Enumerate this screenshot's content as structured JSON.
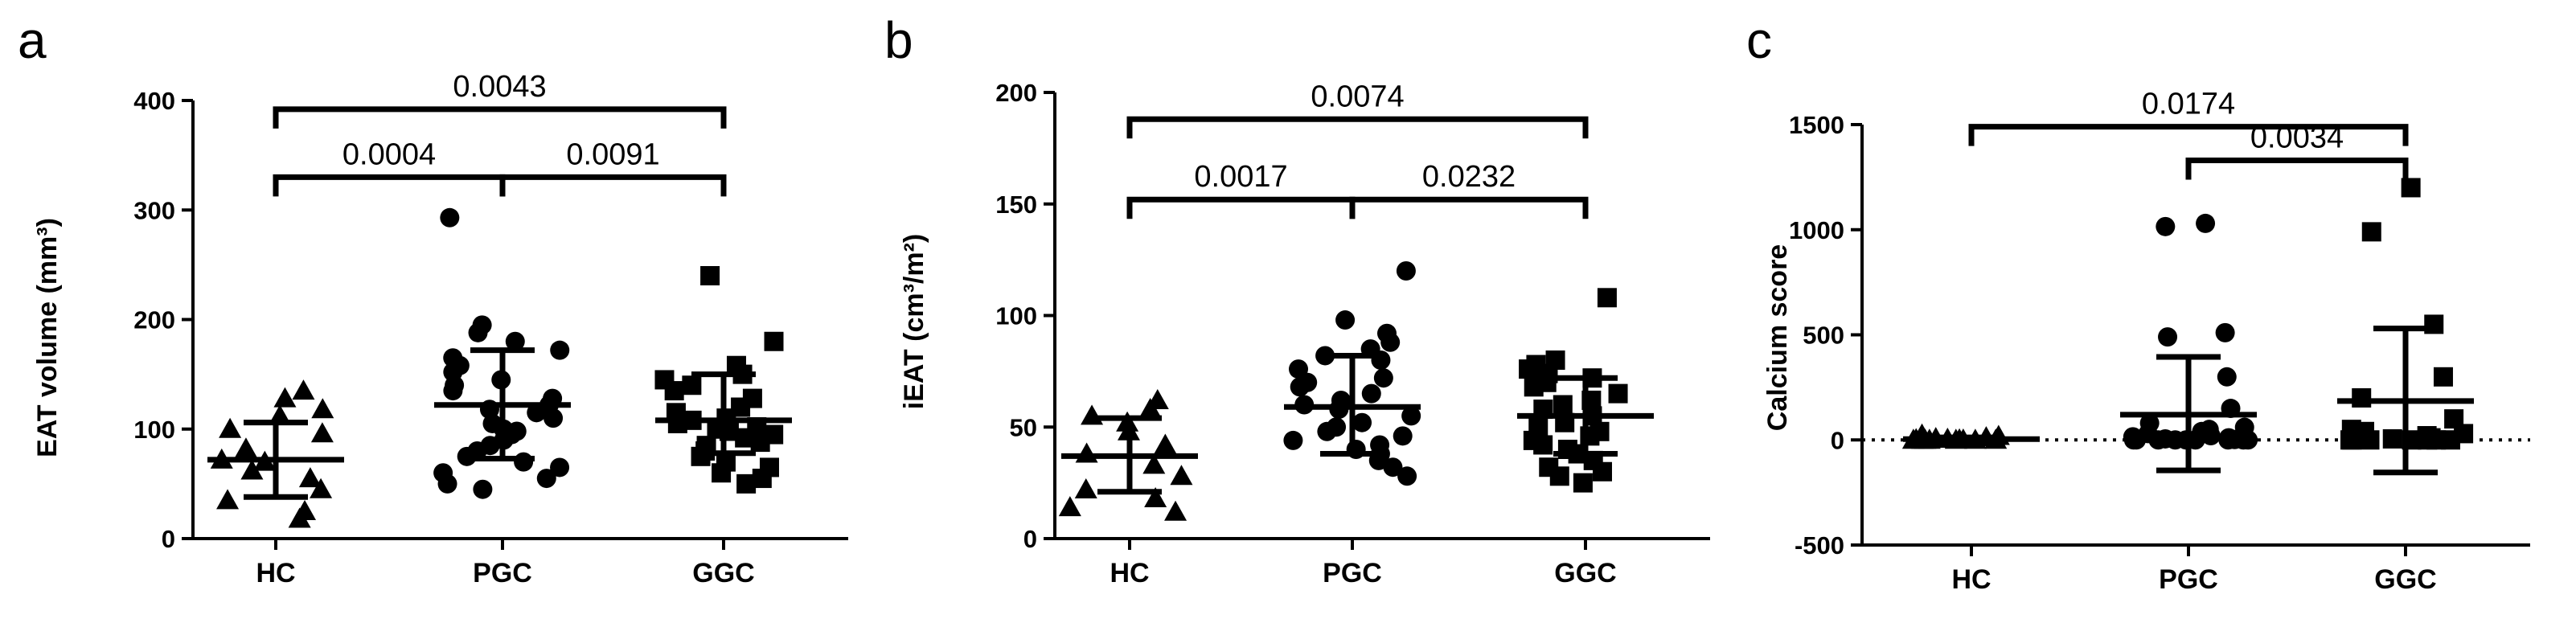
{
  "chart_data": [
    {
      "panel": "a",
      "type": "scatter",
      "ylabel": "EAT volume (mm³)",
      "categories": [
        "HC",
        "PGC",
        "GGC"
      ],
      "ylim": [
        0,
        400
      ],
      "yticks": [
        0,
        100,
        200,
        300,
        400
      ],
      "markers": [
        "triangle",
        "circle",
        "square"
      ],
      "errorbar_color": [
        "#000000",
        "#000000",
        "#000000"
      ],
      "groups": [
        {
          "name": "HC",
          "points": [
            135,
            128,
            118,
            112,
            100,
            96,
            82,
            72,
            70,
            62,
            55,
            45,
            35,
            25,
            18
          ],
          "mean": 72,
          "sd_low": 38,
          "sd_high": 106
        },
        {
          "name": "PGC",
          "points": [
            293,
            195,
            188,
            180,
            172,
            165,
            158,
            152,
            145,
            140,
            135,
            128,
            122,
            118,
            115,
            110,
            105,
            100,
            98,
            95,
            90,
            85,
            80,
            75,
            70,
            65,
            60,
            55,
            50,
            45
          ],
          "mean": 122,
          "sd_low": 73,
          "sd_high": 172
        },
        {
          "name": "GGC",
          "points": [
            240,
            180,
            158,
            150,
            145,
            140,
            135,
            128,
            120,
            115,
            110,
            108,
            105,
            102,
            100,
            98,
            95,
            92,
            88,
            85,
            80,
            75,
            70,
            65,
            60,
            55,
            50
          ],
          "mean": 108,
          "sd_low": 78,
          "sd_high": 150
        }
      ],
      "comparisons": [
        {
          "from": "HC",
          "to": "PGC",
          "label": "0.0004",
          "y": 330
        },
        {
          "from": "PGC",
          "to": "GGC",
          "label": "0.0091",
          "y": 330
        },
        {
          "from": "HC",
          "to": "GGC",
          "label": "0.0043",
          "y": 392
        }
      ]
    },
    {
      "panel": "b",
      "type": "scatter",
      "ylabel": "iEAT (cm³/m²)",
      "categories": [
        "HC",
        "PGC",
        "GGC"
      ],
      "ylim": [
        0,
        200
      ],
      "yticks": [
        0,
        50,
        100,
        150,
        200
      ],
      "markers": [
        "triangle",
        "circle",
        "square"
      ],
      "errorbar_color": [
        "#777777",
        "#000000",
        "#000000"
      ],
      "groups": [
        {
          "name": "HC",
          "points": [
            62,
            58,
            55,
            52,
            48,
            42,
            38,
            33,
            28,
            22,
            18,
            14,
            12
          ],
          "mean": 37,
          "sd_low": 21,
          "sd_high": 54
        },
        {
          "name": "PGC",
          "points": [
            120,
            98,
            92,
            88,
            85,
            82,
            80,
            76,
            72,
            70,
            68,
            65,
            62,
            60,
            58,
            55,
            52,
            50,
            48,
            46,
            44,
            42,
            40,
            38,
            35,
            32,
            28
          ],
          "mean": 59,
          "sd_low": 38,
          "sd_high": 82
        },
        {
          "name": "GGC",
          "points": [
            108,
            80,
            78,
            76,
            74,
            72,
            70,
            68,
            65,
            62,
            60,
            58,
            55,
            52,
            50,
            48,
            46,
            44,
            42,
            40,
            38,
            35,
            32,
            30,
            28,
            25
          ],
          "mean": 55,
          "sd_low": 38,
          "sd_high": 72
        }
      ],
      "comparisons": [
        {
          "from": "HC",
          "to": "PGC",
          "label": "0.0017",
          "y": 152
        },
        {
          "from": "PGC",
          "to": "GGC",
          "label": "0.0232",
          "y": 152
        },
        {
          "from": "HC",
          "to": "GGC",
          "label": "0.0074",
          "y": 188
        }
      ]
    },
    {
      "panel": "c",
      "type": "scatter",
      "ylabel": "Calcium score",
      "categories": [
        "HC",
        "PGC",
        "GGC"
      ],
      "ylim": [
        -500,
        1500
      ],
      "yticks": [
        -500,
        0,
        500,
        1000,
        1500
      ],
      "zero_line": true,
      "markers": [
        "triangle",
        "circle",
        "square"
      ],
      "errorbar_color": [
        "#000000",
        "#000000",
        "#000000"
      ],
      "groups": [
        {
          "name": "HC",
          "points": [
            25,
            18,
            12,
            8,
            5,
            3,
            2,
            1,
            0,
            0,
            0,
            0,
            0,
            0,
            0
          ],
          "mean": 4,
          "sd_low": -5,
          "sd_high": 12
        },
        {
          "name": "PGC",
          "points": [
            1030,
            1015,
            510,
            490,
            300,
            150,
            80,
            60,
            50,
            40,
            30,
            20,
            15,
            10,
            5,
            2,
            0,
            0,
            0,
            0,
            0,
            0,
            0,
            0,
            0
          ],
          "mean": 120,
          "sd_low": -145,
          "sd_high": 395
        },
        {
          "name": "GGC",
          "points": [
            1200,
            990,
            550,
            300,
            200,
            100,
            50,
            40,
            30,
            20,
            10,
            5,
            2,
            0,
            0,
            0,
            0,
            0,
            0,
            0
          ],
          "mean": 185,
          "sd_low": -155,
          "sd_high": 530
        }
      ],
      "comparisons": [
        {
          "from": "PGC",
          "to": "GGC",
          "label": "0.0034",
          "y": 1330
        },
        {
          "from": "HC",
          "to": "GGC",
          "label": "0.0174",
          "y": 1490
        }
      ]
    }
  ]
}
